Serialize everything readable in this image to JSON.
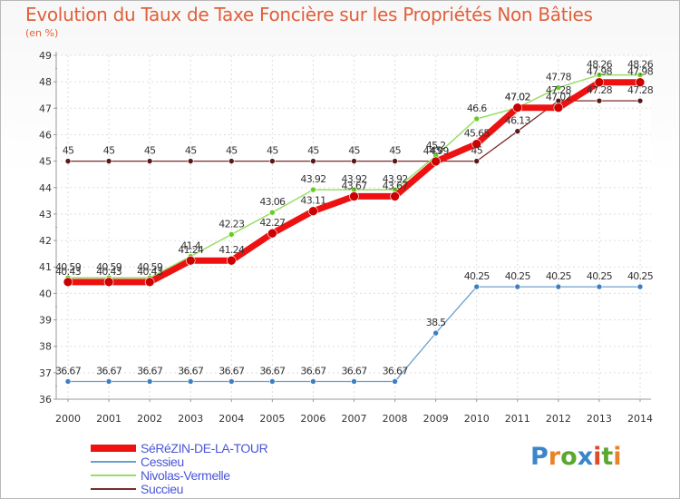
{
  "title": "Evolution du Taux de Taxe Foncière sur les Propriétés Non Bâties",
  "subtitle": "(en %)",
  "logo": {
    "text": "Proxiti",
    "letters": [
      "P",
      "r",
      "o",
      "x",
      "i",
      "t",
      "i"
    ],
    "colors": [
      "#3a86c8",
      "#e8832a",
      "#5aa830",
      "#3a86c8",
      "#e04a2a",
      "#5aa830",
      "#e8832a"
    ]
  },
  "chart_data": {
    "type": "line",
    "title": "Evolution du Taux de Taxe Foncière sur les Propriétés Non Bâties",
    "ylabel": "(en %)",
    "xlabel": "",
    "ylim": [
      36,
      49
    ],
    "yticks": [
      "36",
      "37",
      "38",
      "39",
      "40",
      "41",
      "42",
      "43",
      "44",
      "45",
      "46",
      "47",
      "48",
      "49"
    ],
    "grid": true,
    "categories": [
      "2000",
      "2001",
      "2002",
      "2003",
      "2004",
      "2005",
      "2006",
      "2007",
      "2008",
      "2009",
      "2010",
      "2011",
      "2012",
      "2013",
      "2014"
    ],
    "series": [
      {
        "name": "Succieu",
        "color": "#7a2b2b",
        "marker": "#5a1818",
        "width": 1.3,
        "radius": 3,
        "values": [
          45,
          45,
          45,
          45,
          45,
          45,
          45,
          45,
          45,
          45,
          45,
          46.13,
          47.28,
          47.28,
          47.28
        ],
        "labels": [
          "45",
          "45",
          "45",
          "45",
          "45",
          "45",
          "45",
          "45",
          "45",
          "45",
          "45",
          "46.13",
          "47.28",
          "47.28",
          "47.28"
        ]
      },
      {
        "name": "Cessieu",
        "color": "#6b9fcf",
        "marker": "#3d7fc0",
        "width": 1.3,
        "radius": 3,
        "values": [
          36.67,
          36.67,
          36.67,
          36.67,
          36.67,
          36.67,
          36.67,
          36.67,
          36.67,
          38.5,
          40.25,
          40.25,
          40.25,
          40.25,
          40.25
        ],
        "labels": [
          "36.67",
          "36.67",
          "36.67",
          "36.67",
          "36.67",
          "36.67",
          "36.67",
          "36.67",
          "36.67",
          "38.5",
          "40.25",
          "40.25",
          "40.25",
          "40.25",
          "40.25"
        ]
      },
      {
        "name": "Nivolas-Vermelle",
        "color": "#99dd66",
        "marker": "#66cc22",
        "width": 1.5,
        "radius": 3,
        "values": [
          40.59,
          40.59,
          40.59,
          41.4,
          42.23,
          43.06,
          43.92,
          43.92,
          43.92,
          45.2,
          46.6,
          47.02,
          47.78,
          48.26,
          48.26
        ],
        "labels": [
          "40.59",
          "40.59",
          "40.59",
          "41.4",
          "42.23",
          "43.06",
          "43.92",
          "43.92",
          "43.92",
          "45.2",
          "46.6",
          "47.02",
          "47.78",
          "48.26",
          "48.26"
        ]
      },
      {
        "name": "SéRéZIN-DE-LA-TOUR",
        "color": "#ee1111",
        "marker": "#cc0000",
        "width": 7,
        "radius": 5,
        "values": [
          40.43,
          40.43,
          40.43,
          41.24,
          41.24,
          42.27,
          43.11,
          43.67,
          43.67,
          44.99,
          45.65,
          47.02,
          47.02,
          47.98,
          47.98
        ],
        "labels": [
          "40.43",
          "40.43",
          "40.43",
          "41.24",
          "41.24",
          "42.27",
          "43.11",
          "43.67",
          "43.67",
          "44.99",
          "45.65",
          "47.02",
          "47.02",
          "47.98",
          "47.98"
        ]
      }
    ],
    "legend": [
      "SéRéZIN-DE-LA-TOUR",
      "Cessieu",
      "Nivolas-Vermelle",
      "Succieu"
    ]
  }
}
